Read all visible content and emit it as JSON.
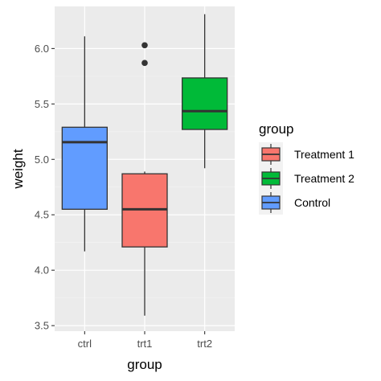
{
  "chart_data": {
    "type": "box",
    "xlabel": "group",
    "ylabel": "weight",
    "ylim": [
      3.45,
      6.38
    ],
    "y_ticks": [
      3.5,
      4.0,
      4.5,
      5.0,
      5.5,
      6.0
    ],
    "y_tick_labels": [
      "3.5",
      "4.0",
      "4.5",
      "5.0",
      "5.5",
      "6.0"
    ],
    "categories": [
      "ctrl",
      "trt1",
      "trt2"
    ],
    "grid": true,
    "legend_position": "right",
    "boxes": [
      {
        "category": "ctrl",
        "min": 4.17,
        "q1": 4.55,
        "median": 5.155,
        "q3": 5.29,
        "max": 6.11,
        "outliers": [],
        "color": "#619CFF"
      },
      {
        "category": "trt1",
        "min": 3.59,
        "q1": 4.21,
        "median": 4.55,
        "q3": 4.87,
        "max": 4.89,
        "outliers": [
          5.87,
          6.03
        ],
        "color": "#F8766D"
      },
      {
        "category": "trt2",
        "min": 4.92,
        "q1": 5.27,
        "median": 5.435,
        "q3": 5.735,
        "max": 6.31,
        "outliers": [],
        "color": "#00BA38"
      }
    ],
    "legend": {
      "title": "group",
      "items": [
        {
          "label": "Treatment 1",
          "color": "#F8766D"
        },
        {
          "label": "Treatment 2",
          "color": "#00BA38"
        },
        {
          "label": "Control",
          "color": "#619CFF"
        }
      ]
    }
  }
}
